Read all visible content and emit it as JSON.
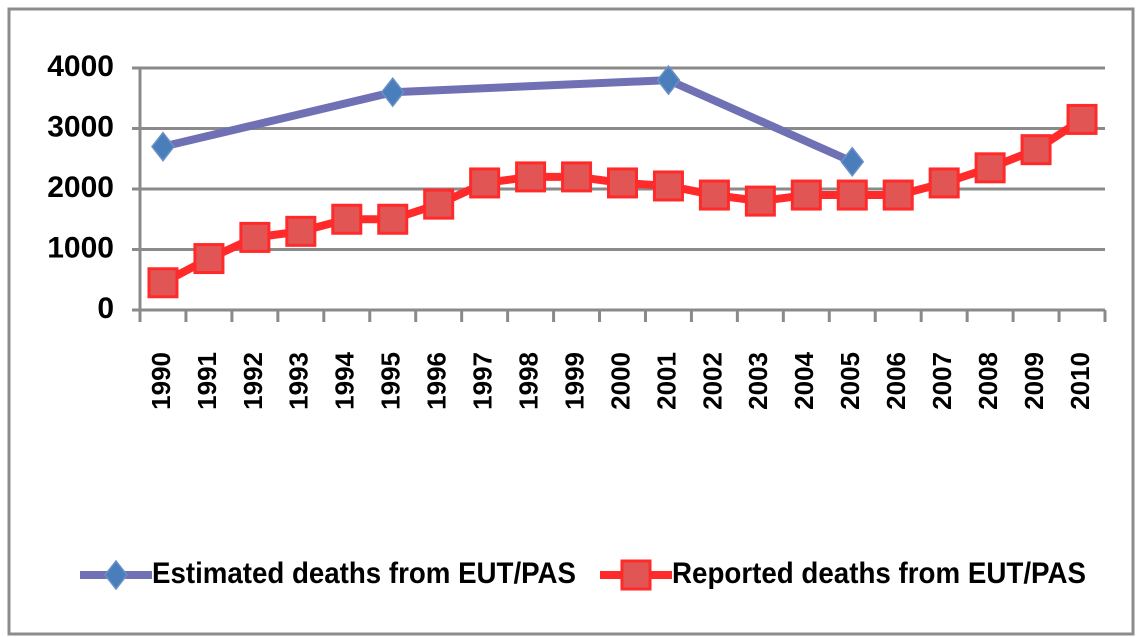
{
  "chart_data": {
    "type": "line",
    "xlim": [
      1990,
      2010
    ],
    "xticks": [
      1990,
      1991,
      1992,
      1993,
      1994,
      1995,
      1996,
      1997,
      1998,
      1999,
      2000,
      2001,
      2002,
      2003,
      2004,
      2005,
      2006,
      2007,
      2008,
      2009,
      2010
    ],
    "ylim": [
      0,
      4000
    ],
    "yticks": [
      0,
      1000,
      2000,
      3000,
      4000
    ],
    "grid": true,
    "series": [
      {
        "name": "Estimated deaths from EUT/PAS",
        "color": "#7070b4",
        "marker_color": "#4a7ebb",
        "marker": "diamond",
        "x": [
          1990,
          1995,
          2001,
          2005
        ],
        "values": [
          2700,
          3600,
          3800,
          2450
        ]
      },
      {
        "name": "Reported deaths from EUT/PAS",
        "color": "#ff2a2a",
        "marker_color": "#e25555",
        "marker": "square",
        "x": [
          1990,
          1991,
          1992,
          1993,
          1994,
          1995,
          1996,
          1997,
          1998,
          1999,
          2000,
          2001,
          2002,
          2003,
          2004,
          2005,
          2006,
          2007,
          2008,
          2009,
          2010
        ],
        "values": [
          450,
          850,
          1200,
          1300,
          1500,
          1500,
          1750,
          2100,
          2200,
          2200,
          2100,
          2050,
          1900,
          1800,
          1900,
          1900,
          1900,
          2100,
          2350,
          2650,
          3150
        ]
      }
    ]
  }
}
